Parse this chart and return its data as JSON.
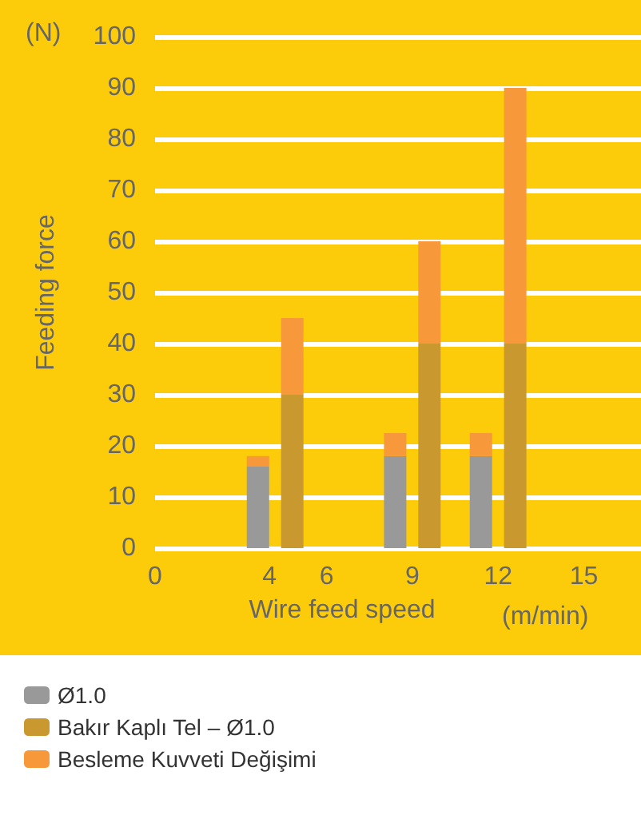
{
  "chart_data": {
    "type": "bar",
    "xlabel": "Wire feed speed",
    "ylabel": "Feeding force",
    "annotations": [
      "(N)",
      "(m/min)"
    ],
    "xlim": [
      0,
      17
    ],
    "xticks": [
      0,
      4,
      6,
      9,
      12,
      15
    ],
    "ylim": [
      0,
      100
    ],
    "yticks": [
      0,
      10,
      20,
      30,
      40,
      50,
      60,
      70,
      80,
      90,
      100
    ],
    "grid": "y",
    "legend": "bottom",
    "stacked": true,
    "x": [
      3.6,
      4.8,
      8.4,
      9.6,
      11.4,
      12.6
    ],
    "series": [
      {
        "name": "Ø1.0",
        "color": "#999999",
        "values": [
          16,
          null,
          18,
          null,
          18,
          null
        ]
      },
      {
        "name": "Bakır Kaplı Tel – Ø1.0",
        "color": "#c9982f",
        "values": [
          null,
          30,
          null,
          40,
          null,
          40
        ]
      },
      {
        "name": "Besleme Kuvveti Değişimi",
        "color": "#f7983a",
        "values": [
          2,
          15,
          4.5,
          20,
          4.5,
          50
        ]
      }
    ]
  }
}
